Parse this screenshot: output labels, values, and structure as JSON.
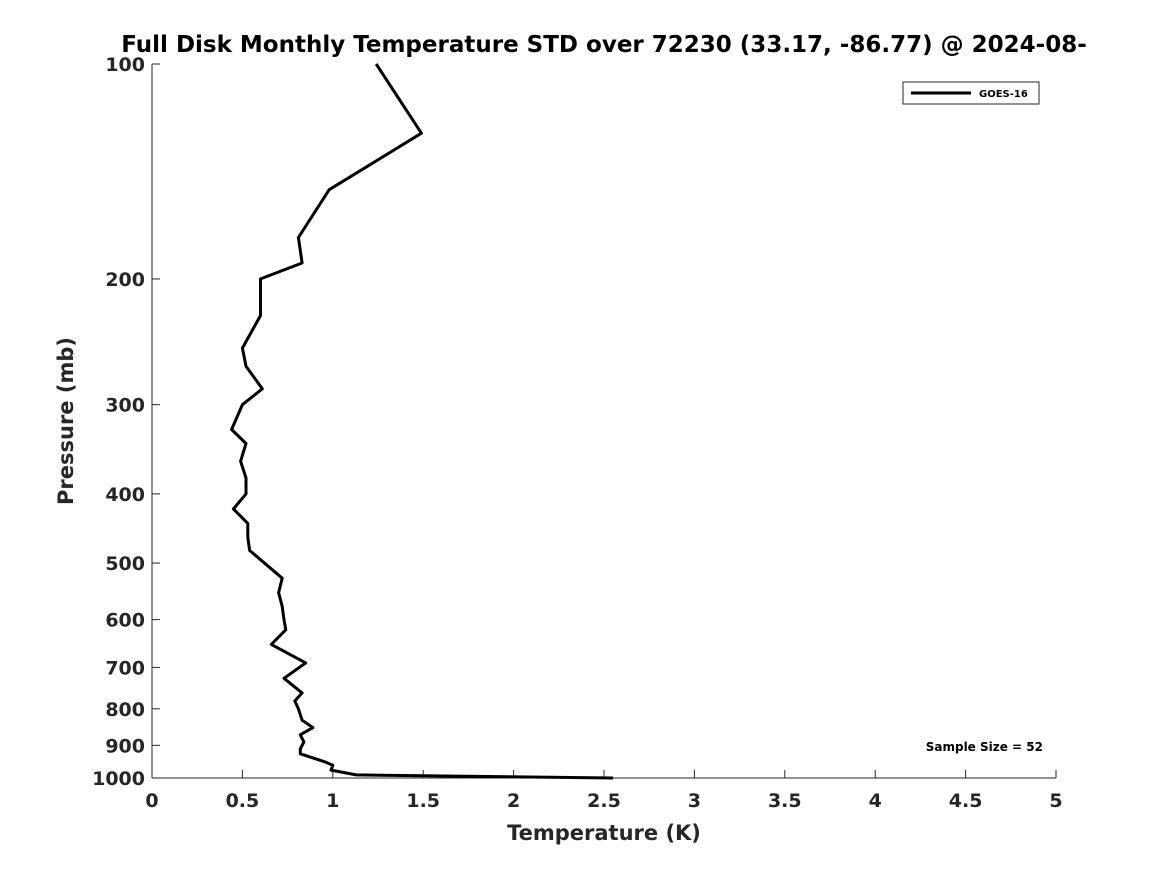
{
  "chart_data": {
    "type": "line",
    "title": "Full Disk Monthly Temperature STD over 72230 (33.17, -86.77) @ 2024-08-",
    "xlabel": "Temperature (K)",
    "ylabel": "Pressure (mb)",
    "xlim": [
      0,
      5
    ],
    "ylim": [
      100,
      1000
    ],
    "y_scale": "log",
    "y_reversed": true,
    "grid": false,
    "legend_position": "top-right",
    "x_ticks": [
      0,
      0.5,
      1,
      1.5,
      2,
      2.5,
      3,
      3.5,
      4,
      4.5,
      5
    ],
    "x_tick_labels": [
      "0",
      "0.5",
      "1",
      "1.5",
      "2",
      "2.5",
      "3",
      "3.5",
      "4",
      "4.5",
      "5"
    ],
    "y_ticks": [
      100,
      200,
      300,
      400,
      500,
      600,
      700,
      800,
      900,
      1000
    ],
    "y_tick_labels": [
      "100",
      "200",
      "300",
      "400",
      "500",
      "600",
      "700",
      "800",
      "900",
      "1000"
    ],
    "series": [
      {
        "name": "GOES-16",
        "color": "#000000",
        "points": [
          [
            1.24,
            100
          ],
          [
            1.49,
            125
          ],
          [
            0.98,
            150
          ],
          [
            0.81,
            175
          ],
          [
            0.83,
            190
          ],
          [
            0.6,
            200
          ],
          [
            0.6,
            225
          ],
          [
            0.5,
            250
          ],
          [
            0.52,
            265
          ],
          [
            0.61,
            285
          ],
          [
            0.5,
            300
          ],
          [
            0.44,
            325
          ],
          [
            0.52,
            340
          ],
          [
            0.49,
            360
          ],
          [
            0.52,
            380
          ],
          [
            0.52,
            400
          ],
          [
            0.45,
            420
          ],
          [
            0.53,
            440
          ],
          [
            0.53,
            460
          ],
          [
            0.54,
            480
          ],
          [
            0.72,
            525
          ],
          [
            0.7,
            550
          ],
          [
            0.72,
            575
          ],
          [
            0.73,
            600
          ],
          [
            0.74,
            620
          ],
          [
            0.66,
            650
          ],
          [
            0.85,
            690
          ],
          [
            0.73,
            725
          ],
          [
            0.83,
            760
          ],
          [
            0.79,
            780
          ],
          [
            0.81,
            800
          ],
          [
            0.83,
            830
          ],
          [
            0.89,
            850
          ],
          [
            0.82,
            870
          ],
          [
            0.84,
            890
          ],
          [
            0.82,
            910
          ],
          [
            0.82,
            925
          ],
          [
            0.96,
            950
          ],
          [
            1.0,
            960
          ],
          [
            0.99,
            975
          ],
          [
            1.13,
            990
          ],
          [
            2.55,
            1000
          ]
        ]
      }
    ],
    "annotation": "Sample Size = 52"
  }
}
